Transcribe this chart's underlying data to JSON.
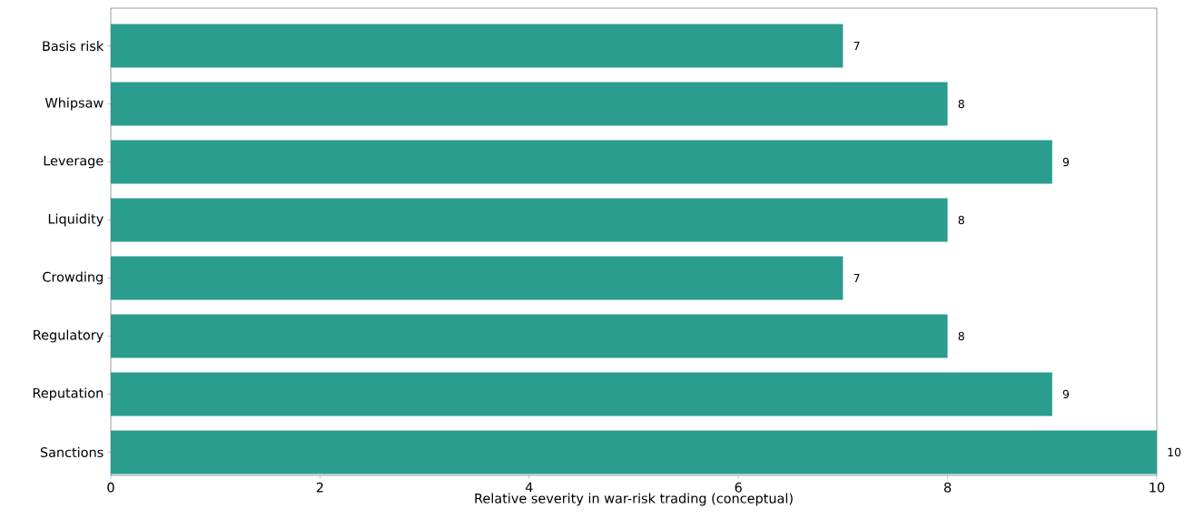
{
  "chart_data": {
    "type": "bar",
    "orientation": "horizontal",
    "xlabel": "Relative severity in war-risk trading (conceptual)",
    "categories": [
      "Basis risk",
      "Whipsaw",
      "Leverage",
      "Liquidity",
      "Crowding",
      "Regulatory",
      "Reputation",
      "Sanctions"
    ],
    "values": [
      7,
      8,
      9,
      8,
      7,
      8,
      9,
      10
    ],
    "color": "#2a9d8f",
    "data_labels": true,
    "xlim": [
      0,
      10
    ],
    "xticks": [
      0,
      2,
      4,
      6,
      8,
      10
    ],
    "grid": false
  }
}
